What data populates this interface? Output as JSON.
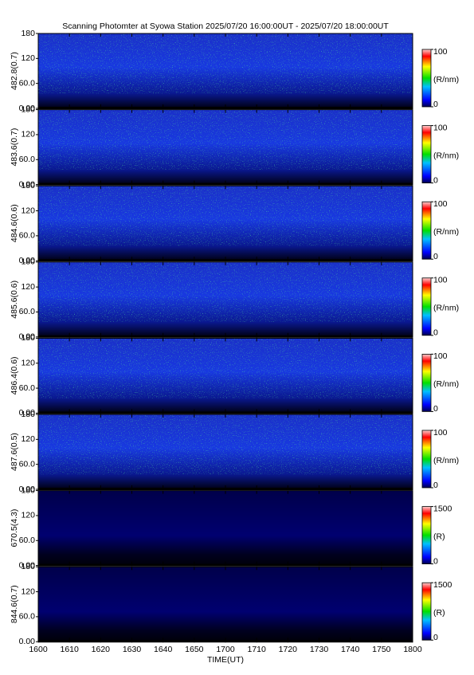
{
  "chart_data": {
    "type": "heatmap",
    "title": "Scanning Photomter at Syowa Station 2025/07/20 16:00:00UT - 2025/07/20 18:00:00UT",
    "xlabel": "TIME(UT)",
    "xticks": [
      "1600",
      "1610",
      "1620",
      "1630",
      "1640",
      "1650",
      "1700",
      "1710",
      "1720",
      "1730",
      "1740",
      "1750",
      "1800"
    ],
    "panels": [
      {
        "ylabel": "482.8(0.7)",
        "ylim": [
          0,
          180
        ],
        "yticks": [
          {
            "value": 0,
            "label": "0.00"
          },
          {
            "value": 60,
            "label": "60.0"
          },
          120,
          180
        ],
        "colorbar": {
          "lim": [
            0,
            100
          ],
          "label": "(R/nm)"
        }
      },
      {
        "ylabel": "483.6(0.7)",
        "ylim": [
          0,
          180
        ],
        "yticks": [
          {
            "value": 0,
            "label": "0.00"
          },
          {
            "value": 60,
            "label": "60.0"
          },
          120,
          180
        ],
        "colorbar": {
          "lim": [
            0,
            100
          ],
          "label": "(R/nm)"
        }
      },
      {
        "ylabel": "484.6(0.6)",
        "ylim": [
          0,
          180
        ],
        "yticks": [
          {
            "value": 0,
            "label": "0.00"
          },
          {
            "value": 60,
            "label": "60.0"
          },
          120,
          180
        ],
        "colorbar": {
          "lim": [
            0,
            100
          ],
          "label": "(R/nm)"
        }
      },
      {
        "ylabel": "485.6(0.6)",
        "ylim": [
          0,
          180
        ],
        "yticks": [
          {
            "value": 0,
            "label": "0.00"
          },
          {
            "value": 60,
            "label": "60.0"
          },
          120,
          180
        ],
        "colorbar": {
          "lim": [
            0,
            100
          ],
          "label": "(R/nm)"
        }
      },
      {
        "ylabel": "486.4(0.6)",
        "ylim": [
          0,
          180
        ],
        "yticks": [
          {
            "value": 0,
            "label": "0.00"
          },
          {
            "value": 60,
            "label": "60.0"
          },
          120,
          180
        ],
        "colorbar": {
          "lim": [
            0,
            100
          ],
          "label": "(R/nm)"
        }
      },
      {
        "ylabel": "487.6(0.5)",
        "ylim": [
          0,
          180
        ],
        "yticks": [
          {
            "value": 0,
            "label": "0.00"
          },
          {
            "value": 60,
            "label": "60.0"
          },
          120,
          180
        ],
        "colorbar": {
          "lim": [
            0,
            100
          ],
          "label": "(R/nm)"
        }
      },
      {
        "ylabel": "670.5(4.3)",
        "ylim": [
          0,
          180
        ],
        "yticks": [
          {
            "value": 0,
            "label": "0.00"
          },
          {
            "value": 60,
            "label": "60.0"
          },
          120,
          180
        ],
        "colorbar": {
          "lim": [
            0,
            1500
          ],
          "label": "(R)"
        }
      },
      {
        "ylabel": "844.6(0.7)",
        "ylim": [
          0,
          180
        ],
        "yticks": [
          {
            "value": 0,
            "label": "0.00"
          },
          {
            "value": 60,
            "label": "60.0"
          },
          120,
          180
        ],
        "colorbar": {
          "lim": [
            0,
            1500
          ],
          "label": "(R)"
        }
      }
    ]
  }
}
